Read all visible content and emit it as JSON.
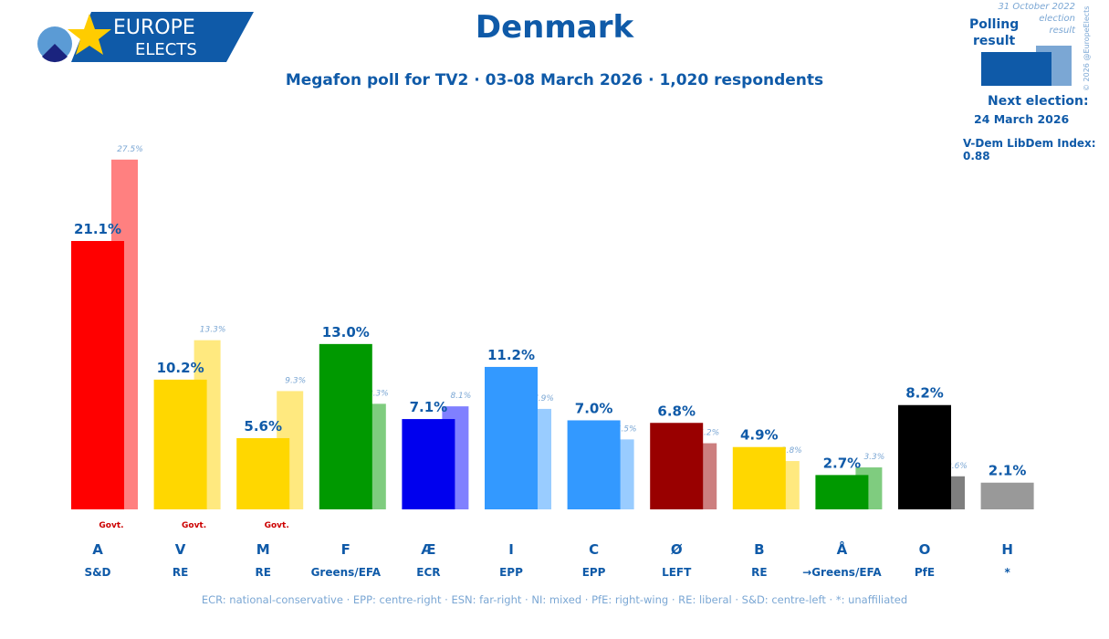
{
  "header": {
    "title": "Denmark",
    "subtitle": "Megafon poll for TV2 · 03-08 March 2026 · 1,020 respondents"
  },
  "logo": {
    "line1": "EUROPE",
    "line2": "ELECTS"
  },
  "legend": {
    "poll_label_1": "Polling",
    "poll_label_2": "result",
    "prev_label_1": "31 October 2022",
    "prev_label_2": "election",
    "prev_label_3": "result",
    "copyright": "© 2026 @EuropeElects",
    "next_election_label": "Next election:",
    "next_election_date": "24 March 2026",
    "vdem": "V-Dem LibDem Index: 0.88",
    "poll_color": "#0f5aa8",
    "prev_color": "#7ba7d4"
  },
  "footer": "ECR: national-conservative · EPP: centre-right · ESN: far-right · NI: mixed · PfE: right-wing · RE: liberal · S&D: centre-left · *: unaffiliated",
  "chart_data": {
    "type": "bar",
    "categories": [
      "A",
      "V",
      "M",
      "F",
      "Æ",
      "I",
      "C",
      "Ø",
      "B",
      "Å",
      "O",
      "H"
    ],
    "groups": [
      "S&D",
      "RE",
      "RE",
      "Greens/EFA",
      "ECR",
      "EPP",
      "EPP",
      "LEFT",
      "RE",
      "→Greens/EFA",
      "PfE",
      "*"
    ],
    "series": [
      {
        "name": "Polling result",
        "values": [
          21.1,
          10.2,
          5.6,
          13.0,
          7.1,
          11.2,
          7.0,
          6.8,
          4.9,
          2.7,
          8.2,
          2.1
        ]
      },
      {
        "name": "31 October 2022 election result",
        "values": [
          27.5,
          13.3,
          9.3,
          8.3,
          8.1,
          7.9,
          5.5,
          5.2,
          3.8,
          3.3,
          2.6,
          null
        ]
      }
    ],
    "colors": [
      "#ff0000",
      "#ffd700",
      "#ffd700",
      "#009900",
      "#0000ee",
      "#3399ff",
      "#3399ff",
      "#990000",
      "#ffd700",
      "#009900",
      "#000000",
      "#999999"
    ],
    "prev_colors": [
      "#ff8080",
      "#ffe97f",
      "#ffe97f",
      "#7fcc7f",
      "#8080ff",
      "#99ccff",
      "#99ccff",
      "#cc7f7f",
      "#ffe97f",
      "#7fcc7f",
      "#7f7f7f",
      ""
    ],
    "government": [
      true,
      true,
      true,
      false,
      false,
      false,
      false,
      false,
      false,
      false,
      false,
      false
    ],
    "government_label": "Govt.",
    "ylim": [
      0,
      28
    ],
    "grid": false
  }
}
